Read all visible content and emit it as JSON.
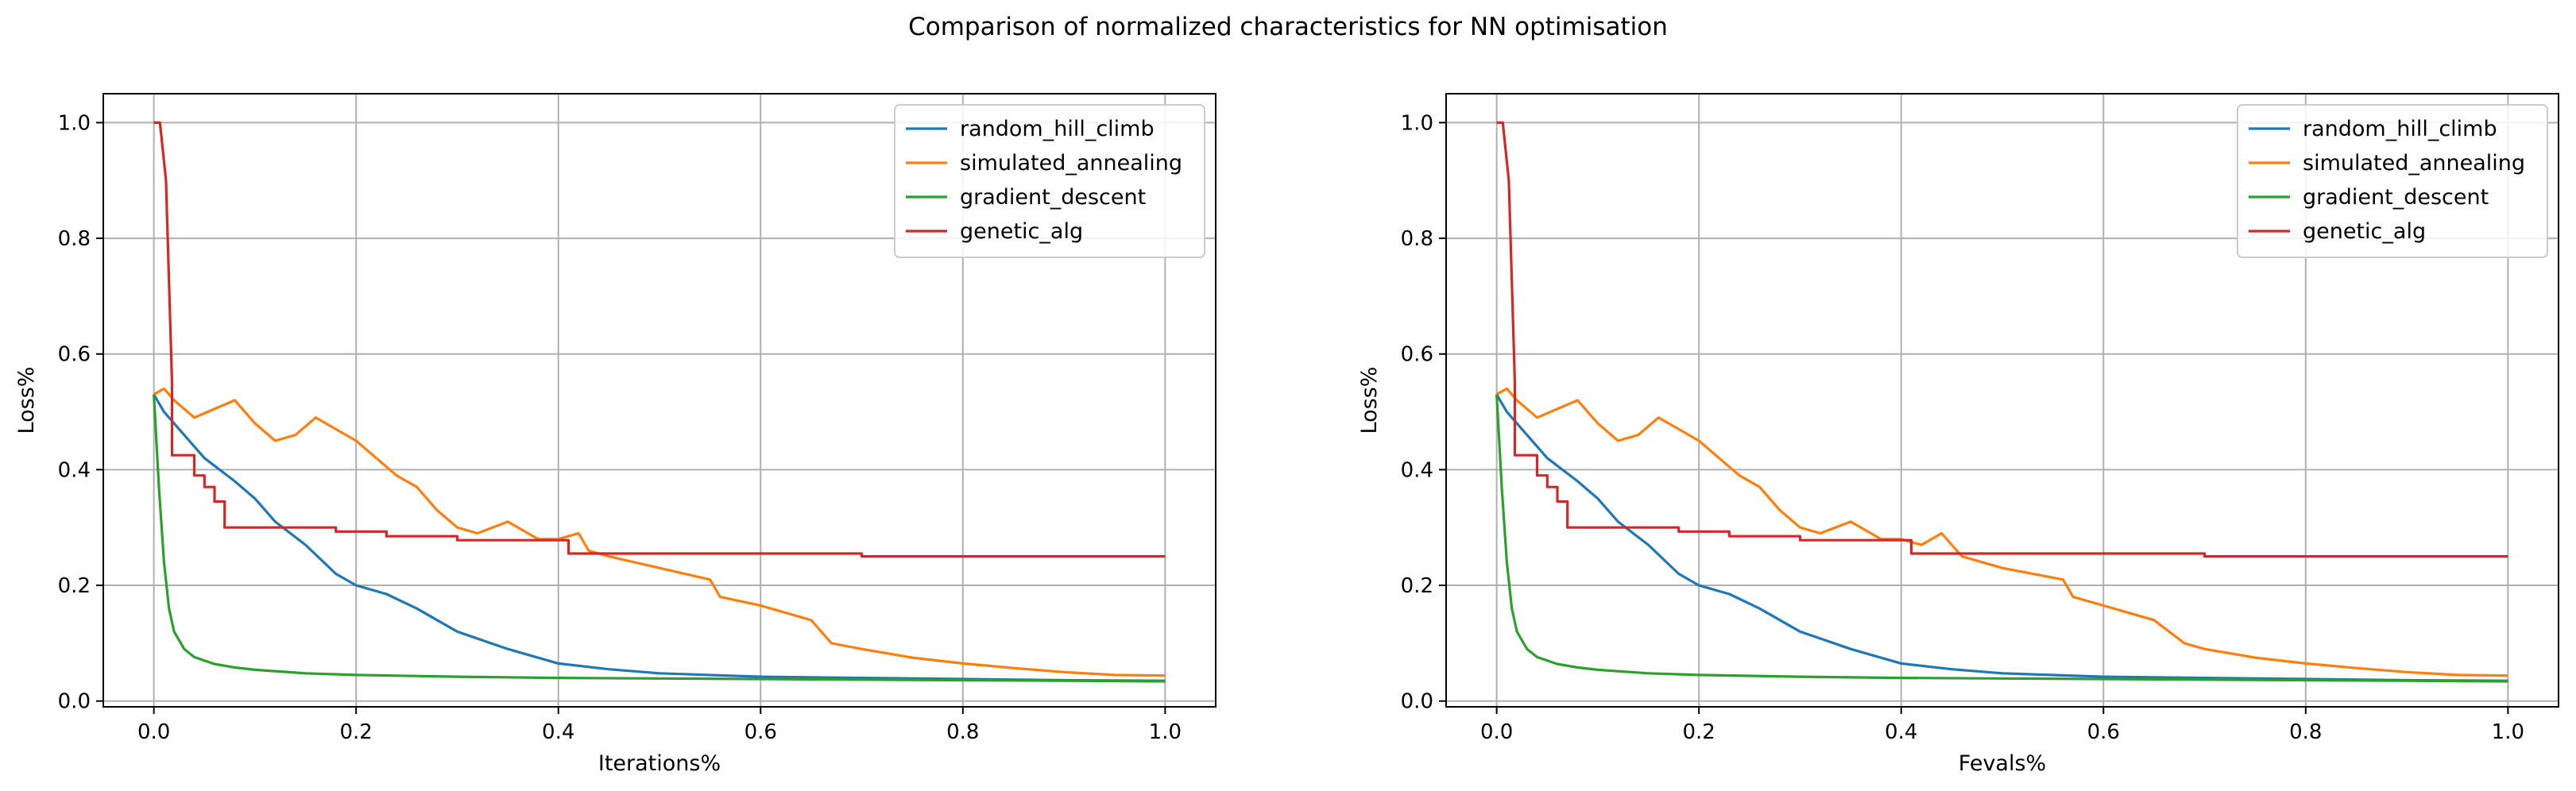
{
  "title": "Comparison of normalized characteristics for NN optimisation",
  "colors": {
    "random_hill_climb": "#1f77b4",
    "simulated_annealing": "#ff7f0e",
    "gradient_descent": "#2ca02c",
    "genetic_alg": "#d62728",
    "grid": "#b0b0b0"
  },
  "chart_data": [
    {
      "type": "line",
      "title": "",
      "xlabel": "Iterations%",
      "ylabel": "Loss%",
      "xlim": [
        -0.05,
        1.05
      ],
      "ylim": [
        -0.01,
        1.05
      ],
      "xticks": [
        0.0,
        0.2,
        0.4,
        0.6,
        0.8,
        1.0
      ],
      "xtick_labels": [
        "0.0",
        "0.2",
        "0.4",
        "0.6",
        "0.8",
        "1.0"
      ],
      "yticks": [
        0.0,
        0.2,
        0.4,
        0.6,
        0.8,
        1.0
      ],
      "ytick_labels": [
        "0.0",
        "0.2",
        "0.4",
        "0.6",
        "0.8",
        "1.0"
      ],
      "grid": true,
      "legend": "top-right",
      "series": [
        {
          "name": "random_hill_climb",
          "x": [
            0,
            0.01,
            0.03,
            0.05,
            0.08,
            0.1,
            0.12,
            0.15,
            0.18,
            0.2,
            0.23,
            0.26,
            0.3,
            0.35,
            0.4,
            0.45,
            0.5,
            0.6,
            0.7,
            0.8,
            0.9,
            1.0
          ],
          "y": [
            0.53,
            0.5,
            0.46,
            0.42,
            0.38,
            0.35,
            0.31,
            0.27,
            0.22,
            0.2,
            0.185,
            0.16,
            0.12,
            0.09,
            0.065,
            0.055,
            0.048,
            0.042,
            0.04,
            0.038,
            0.036,
            0.035
          ]
        },
        {
          "name": "simulated_annealing",
          "x": [
            0,
            0.01,
            0.02,
            0.04,
            0.06,
            0.08,
            0.1,
            0.12,
            0.14,
            0.16,
            0.18,
            0.2,
            0.22,
            0.24,
            0.26,
            0.28,
            0.3,
            0.32,
            0.35,
            0.38,
            0.4,
            0.42,
            0.43,
            0.45,
            0.5,
            0.55,
            0.56,
            0.6,
            0.65,
            0.67,
            0.7,
            0.75,
            0.8,
            0.85,
            0.9,
            0.95,
            1.0
          ],
          "y": [
            0.53,
            0.54,
            0.52,
            0.49,
            0.505,
            0.52,
            0.48,
            0.45,
            0.46,
            0.49,
            0.47,
            0.45,
            0.42,
            0.39,
            0.37,
            0.33,
            0.3,
            0.29,
            0.31,
            0.28,
            0.28,
            0.29,
            0.26,
            0.25,
            0.23,
            0.21,
            0.18,
            0.165,
            0.14,
            0.1,
            0.09,
            0.075,
            0.065,
            0.057,
            0.05,
            0.045,
            0.044
          ]
        },
        {
          "name": "gradient_descent",
          "x": [
            0,
            0.005,
            0.01,
            0.015,
            0.02,
            0.03,
            0.04,
            0.06,
            0.08,
            0.1,
            0.15,
            0.2,
            0.3,
            0.4,
            0.5,
            0.6,
            0.7,
            0.8,
            0.9,
            1.0
          ],
          "y": [
            0.53,
            0.37,
            0.24,
            0.16,
            0.12,
            0.09,
            0.076,
            0.064,
            0.058,
            0.054,
            0.048,
            0.045,
            0.042,
            0.04,
            0.039,
            0.038,
            0.037,
            0.036,
            0.035,
            0.034
          ]
        },
        {
          "name": "genetic_alg",
          "x": [
            0,
            0.006,
            0.006,
            0.012,
            0.018,
            0.018,
            0.04,
            0.04,
            0.05,
            0.05,
            0.06,
            0.06,
            0.07,
            0.07,
            0.085,
            0.085,
            0.18,
            0.18,
            0.23,
            0.23,
            0.3,
            0.3,
            0.41,
            0.41,
            0.7,
            0.7,
            1.0
          ],
          "y": [
            1.0,
            1.0,
            1.0,
            0.9,
            0.55,
            0.425,
            0.425,
            0.39,
            0.39,
            0.37,
            0.37,
            0.345,
            0.345,
            0.3,
            0.3,
            0.3,
            0.3,
            0.293,
            0.293,
            0.285,
            0.285,
            0.278,
            0.278,
            0.255,
            0.255,
            0.25,
            0.25
          ]
        }
      ]
    },
    {
      "type": "line",
      "title": "",
      "xlabel": "Fevals%",
      "ylabel": "Loss%",
      "xlim": [
        -0.05,
        1.05
      ],
      "ylim": [
        -0.01,
        1.05
      ],
      "xticks": [
        0.0,
        0.2,
        0.4,
        0.6,
        0.8,
        1.0
      ],
      "xtick_labels": [
        "0.0",
        "0.2",
        "0.4",
        "0.6",
        "0.8",
        "1.0"
      ],
      "yticks": [
        0.0,
        0.2,
        0.4,
        0.6,
        0.8,
        1.0
      ],
      "ytick_labels": [
        "0.0",
        "0.2",
        "0.4",
        "0.6",
        "0.8",
        "1.0"
      ],
      "grid": true,
      "legend": "top-right",
      "series": [
        {
          "name": "random_hill_climb",
          "x": [
            0,
            0.01,
            0.03,
            0.05,
            0.08,
            0.1,
            0.12,
            0.15,
            0.18,
            0.2,
            0.23,
            0.26,
            0.3,
            0.35,
            0.4,
            0.45,
            0.5,
            0.6,
            0.7,
            0.8,
            0.9,
            1.0
          ],
          "y": [
            0.53,
            0.5,
            0.46,
            0.42,
            0.38,
            0.35,
            0.31,
            0.27,
            0.22,
            0.2,
            0.185,
            0.16,
            0.12,
            0.09,
            0.065,
            0.055,
            0.048,
            0.042,
            0.04,
            0.038,
            0.036,
            0.035
          ]
        },
        {
          "name": "simulated_annealing",
          "x": [
            0,
            0.01,
            0.02,
            0.04,
            0.06,
            0.08,
            0.1,
            0.12,
            0.14,
            0.16,
            0.18,
            0.2,
            0.22,
            0.24,
            0.26,
            0.28,
            0.3,
            0.32,
            0.35,
            0.38,
            0.4,
            0.42,
            0.44,
            0.46,
            0.5,
            0.56,
            0.57,
            0.6,
            0.65,
            0.68,
            0.7,
            0.75,
            0.8,
            0.85,
            0.9,
            0.95,
            1.0
          ],
          "y": [
            0.53,
            0.54,
            0.52,
            0.49,
            0.505,
            0.52,
            0.48,
            0.45,
            0.46,
            0.49,
            0.47,
            0.45,
            0.42,
            0.39,
            0.37,
            0.33,
            0.3,
            0.29,
            0.31,
            0.28,
            0.28,
            0.27,
            0.29,
            0.25,
            0.23,
            0.21,
            0.18,
            0.165,
            0.14,
            0.1,
            0.09,
            0.075,
            0.065,
            0.057,
            0.05,
            0.045,
            0.044
          ]
        },
        {
          "name": "gradient_descent",
          "x": [
            0,
            0.005,
            0.01,
            0.015,
            0.02,
            0.03,
            0.04,
            0.06,
            0.08,
            0.1,
            0.15,
            0.2,
            0.3,
            0.4,
            0.5,
            0.6,
            0.7,
            0.8,
            0.9,
            1.0
          ],
          "y": [
            0.53,
            0.37,
            0.24,
            0.16,
            0.12,
            0.09,
            0.076,
            0.064,
            0.058,
            0.054,
            0.048,
            0.045,
            0.042,
            0.04,
            0.039,
            0.038,
            0.037,
            0.036,
            0.035,
            0.034
          ]
        },
        {
          "name": "genetic_alg",
          "x": [
            0,
            0.006,
            0.006,
            0.012,
            0.018,
            0.018,
            0.04,
            0.04,
            0.05,
            0.05,
            0.06,
            0.06,
            0.07,
            0.07,
            0.085,
            0.085,
            0.18,
            0.18,
            0.23,
            0.23,
            0.3,
            0.3,
            0.41,
            0.41,
            0.7,
            0.7,
            1.0
          ],
          "y": [
            1.0,
            1.0,
            1.0,
            0.9,
            0.55,
            0.425,
            0.425,
            0.39,
            0.39,
            0.37,
            0.37,
            0.345,
            0.345,
            0.3,
            0.3,
            0.3,
            0.3,
            0.293,
            0.293,
            0.285,
            0.285,
            0.278,
            0.278,
            0.255,
            0.255,
            0.25,
            0.25
          ]
        }
      ]
    }
  ]
}
